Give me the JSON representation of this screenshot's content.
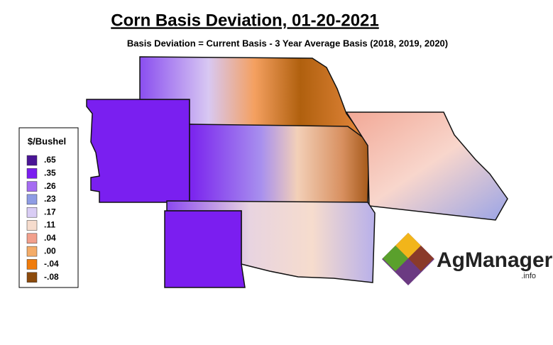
{
  "header": {
    "title": "Corn Basis Deviation, 01-20-2021",
    "subtitle": "Basis Deviation = Current Basis - 3 Year Average Basis (2018, 2019, 2020)"
  },
  "legend": {
    "title": "$/Bushel",
    "items": [
      {
        "label": ".65",
        "color": "#4a1596"
      },
      {
        "label": ".35",
        "color": "#7b1ef0"
      },
      {
        "label": ".26",
        "color": "#a56cf2"
      },
      {
        "label": ".23",
        "color": "#8e9ce4"
      },
      {
        "label": ".17",
        "color": "#d9cdf5"
      },
      {
        "label": ".11",
        "color": "#f6dccd"
      },
      {
        "label": ".04",
        "color": "#f2a08c"
      },
      {
        "label": ".00",
        "color": "#f4ac68"
      },
      {
        "label": "-.04",
        "color": "#f07c0c"
      },
      {
        "label": "-.08",
        "color": "#8c4b0c"
      }
    ]
  },
  "logo": {
    "name": "AgManager",
    "suffix": ".info"
  }
}
